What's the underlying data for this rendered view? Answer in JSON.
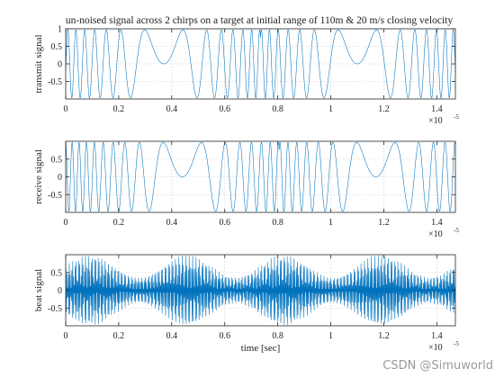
{
  "title": "un-noised signal across 2 chirps on a target at initial range of 110m & 20 m/s closing velocity",
  "watermark": "CSDN @Simuworld",
  "colors": {
    "signal": "#0072BD",
    "axes": "#262626",
    "grid": "#c8c8c8"
  },
  "chart_data": [
    {
      "type": "line",
      "ylabel": "transmit signal",
      "xlabel": "",
      "xlim": [
        0,
        1.47e-05
      ],
      "ylim": [
        -1,
        1
      ],
      "x_ticks": [
        0,
        0.2,
        0.4,
        0.6,
        0.8,
        1,
        1.2,
        1.4
      ],
      "x_tick_multiplier": "×10",
      "x_tick_multiplier_exp": "-5",
      "y_ticks": [
        -0.5,
        0,
        0.5,
        1
      ],
      "y_tick_labels": [
        "-0.5",
        "0",
        "0.5",
        "1"
      ],
      "grid": true,
      "chirp_period": 7.33e-06,
      "chirp_slow_points": [
        3.7e-06,
        1.1e-05
      ],
      "series": [
        {
          "values": "sinusoidal linear FM chirp, amplitude 1"
        }
      ]
    },
    {
      "type": "line",
      "ylabel": "receive signal",
      "xlabel": "",
      "xlim": [
        0,
        1.47e-05
      ],
      "ylim": [
        -1,
        1
      ],
      "x_ticks": [
        0,
        0.2,
        0.4,
        0.6,
        0.8,
        1,
        1.2,
        1.4
      ],
      "x_tick_multiplier": "×10",
      "x_tick_multiplier_exp": "-5",
      "y_ticks": [
        -0.5,
        0,
        0.5
      ],
      "y_tick_labels": [
        "-0.5",
        "0",
        "0.5"
      ],
      "grid": true,
      "chirp_period": 7.33e-06,
      "chirp_slow_points": [
        4.4e-06,
        1.17e-05
      ],
      "series": [
        {
          "values": "delayed chirp, amplitude 1"
        }
      ]
    },
    {
      "type": "line",
      "ylabel": "beat signal",
      "xlabel": "time [sec]",
      "xlim": [
        0,
        1.47e-05
      ],
      "ylim": [
        -1,
        1
      ],
      "x_ticks": [
        0,
        0.2,
        0.4,
        0.6,
        0.8,
        1,
        1.2,
        1.4
      ],
      "x_tick_multiplier": "×10",
      "x_tick_multiplier_exp": "-5",
      "y_ticks": [
        -0.5,
        0,
        0.5
      ],
      "y_tick_labels": [
        "-0.5",
        "0",
        "0.5"
      ],
      "grid": true,
      "series": [
        {
          "values": "mixed product of transmit and receive"
        }
      ]
    }
  ]
}
